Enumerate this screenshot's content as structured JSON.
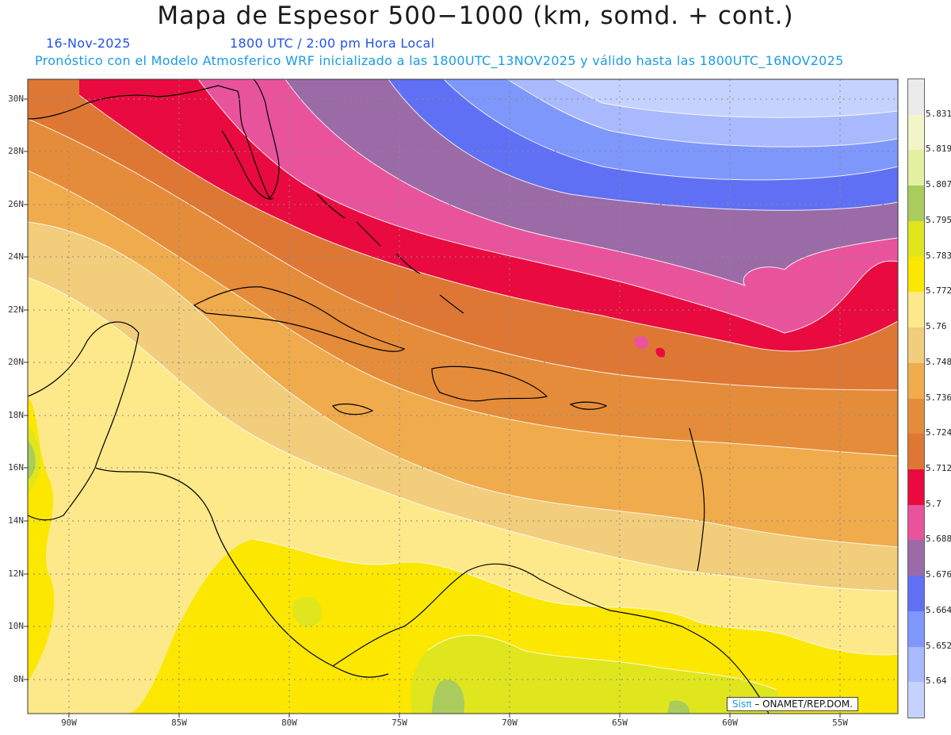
{
  "header": {
    "title": "Mapa de Espesor 500−1000 (km, somd. + cont.)",
    "date": "16-Nov-2025",
    "time": "1800 UTC / 2:00 pm Hora Local",
    "model_line": "Pronóstico con el Modelo Atmosferico WRF inicializado a las 1800UTC_13NOV2025 y válido hasta las  1800UTC_16NOV2025"
  },
  "axes": {
    "lat_labels": [
      "30N",
      "28N",
      "26N",
      "24N",
      "22N",
      "20N",
      "18N",
      "16N",
      "14N",
      "12N",
      "10N",
      "8N"
    ],
    "lon_labels": [
      "90W",
      "85W",
      "80W",
      "75W",
      "70W",
      "65W",
      "60W",
      "55W"
    ]
  },
  "colorbar": {
    "levels": [
      "5.831",
      "5.819",
      "5.807",
      "5.795",
      "5.783",
      "5.772",
      "5.76",
      "5.748",
      "5.736",
      "5.724",
      "5.712",
      "5.7",
      "5.688",
      "5.676",
      "5.664",
      "5.652",
      "5.64"
    ],
    "colors": [
      "#ebebeb",
      "#f2f5c8",
      "#e3f0a0",
      "#a9cc5c",
      "#dfe61d",
      "#fbe700",
      "#fde98a",
      "#f1cd7c",
      "#f0ab4c",
      "#e58c3a",
      "#de7733",
      "#e90a3f",
      "#e8539c",
      "#9b6ba7",
      "#6070f5",
      "#7e97fb",
      "#a9b9fd",
      "#c6d2fe"
    ]
  },
  "credit": {
    "logo": "Sisπ",
    "text": " – ONAMET/REP.DOM."
  }
}
